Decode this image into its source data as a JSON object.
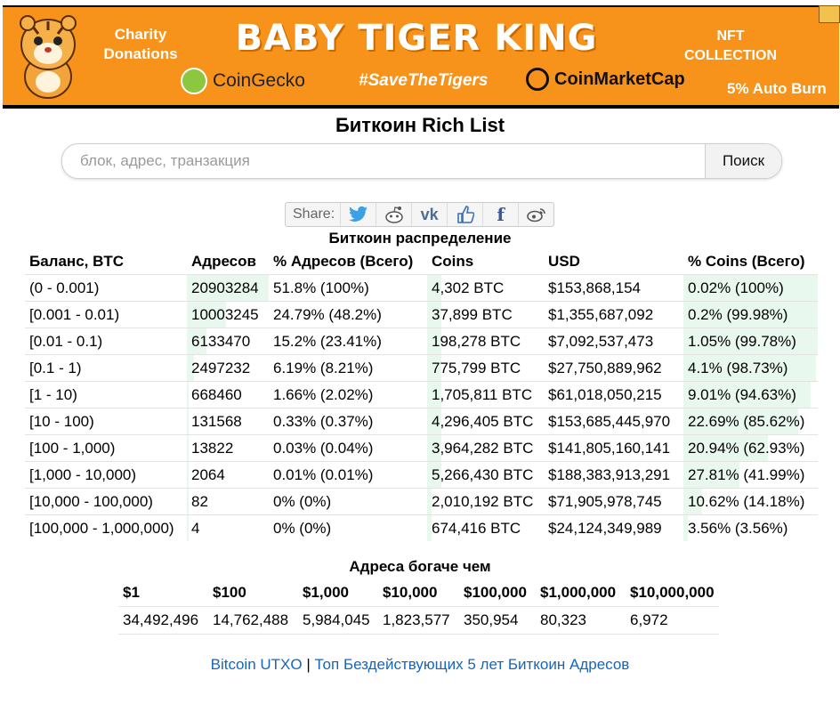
{
  "banner": {
    "charity": "Charity Donations",
    "brand": "BABY TIGER KING",
    "nft": "NFT COLLECTION",
    "coingecko": "CoinGecko",
    "hashtag": "#SaveTheTigers",
    "coinmarketcap": "CoinMarketCap",
    "burn": "5% Auto Burn"
  },
  "page": {
    "title": "Биткоин Rich List"
  },
  "search": {
    "placeholder": "блок, адрес, транзакция",
    "value": "",
    "button": "Поиск"
  },
  "share": {
    "label": "Share:"
  },
  "distribution": {
    "caption": "Биткоин распределение",
    "headers": [
      "Баланс, BTC",
      "Адресов",
      "% Адресов (Всего)",
      "Coins",
      "USD",
      "% Coins (Всего)"
    ],
    "rows": [
      {
        "range": "(0 - 0.001)",
        "addresses": "20903284",
        "pct_addresses": "51.8% (100%)",
        "coins": "4,302 BTC",
        "usd": "$153,868,154",
        "pct_coins": "0.02% (100%)"
      },
      {
        "range": "[0.001 - 0.01)",
        "addresses": "10003245",
        "pct_addresses": "24.79% (48.2%)",
        "coins": "37,899 BTC",
        "usd": "$1,355,687,092",
        "pct_coins": "0.2% (99.98%)"
      },
      {
        "range": "[0.01 - 0.1)",
        "addresses": "6133470",
        "pct_addresses": "15.2% (23.41%)",
        "coins": "198,278 BTC",
        "usd": "$7,092,537,473",
        "pct_coins": "1.05% (99.78%)"
      },
      {
        "range": "[0.1 - 1)",
        "addresses": "2497232",
        "pct_addresses": "6.19% (8.21%)",
        "coins": "775,799 BTC",
        "usd": "$27,750,889,962",
        "pct_coins": "4.1% (98.73%)"
      },
      {
        "range": "[1 - 10)",
        "addresses": "668460",
        "pct_addresses": "1.66% (2.02%)",
        "coins": "1,705,811 BTC",
        "usd": "$61,018,050,215",
        "pct_coins": "9.01% (94.63%)"
      },
      {
        "range": "[10 - 100)",
        "addresses": "131568",
        "pct_addresses": "0.33% (0.37%)",
        "coins": "4,296,405 BTC",
        "usd": "$153,685,445,970",
        "pct_coins": "22.69% (85.62%)"
      },
      {
        "range": "[100 - 1,000)",
        "addresses": "13822",
        "pct_addresses": "0.03% (0.04%)",
        "coins": "3,964,282 BTC",
        "usd": "$141,805,160,141",
        "pct_coins": "20.94% (62.93%)"
      },
      {
        "range": "[1,000 - 10,000)",
        "addresses": "2064",
        "pct_addresses": "0.01% (0.01%)",
        "coins": "5,266,430 BTC",
        "usd": "$188,383,913,291",
        "pct_coins": "27.81% (41.99%)"
      },
      {
        "range": "[10,000 - 100,000)",
        "addresses": "82",
        "pct_addresses": "0% (0%)",
        "coins": "2,010,192 BTC",
        "usd": "$71,905,978,745",
        "pct_coins": "10.62% (14.18%)"
      },
      {
        "range": "[100,000 - 1,000,000)",
        "addresses": "4",
        "pct_addresses": "0% (0%)",
        "coins": "674,416 BTC",
        "usd": "$24,124,349,989",
        "pct_coins": "3.56% (3.56%)"
      }
    ]
  },
  "richer": {
    "caption": "Адреса богаче чем",
    "headers": [
      "$1",
      "$100",
      "$1,000",
      "$10,000",
      "$100,000",
      "$1,000,000",
      "$10,000,000"
    ],
    "values": [
      "34,492,496",
      "14,762,488",
      "5,984,045",
      "1,823,577",
      "350,954",
      "80,323",
      "6,972"
    ]
  },
  "links": {
    "utxo": "Bitcoin UTXO",
    "separator": " | ",
    "dormant": "Топ Бездействующих 5 лет Биткоин Адресов"
  },
  "colors": {
    "banner_bg": "#f7931a",
    "bar_fill": "#e8f8ef",
    "link": "#1565c0"
  },
  "icons": [
    "twitter-icon",
    "reddit-icon",
    "vk-icon",
    "like-icon",
    "facebook-icon",
    "weibo-icon"
  ]
}
